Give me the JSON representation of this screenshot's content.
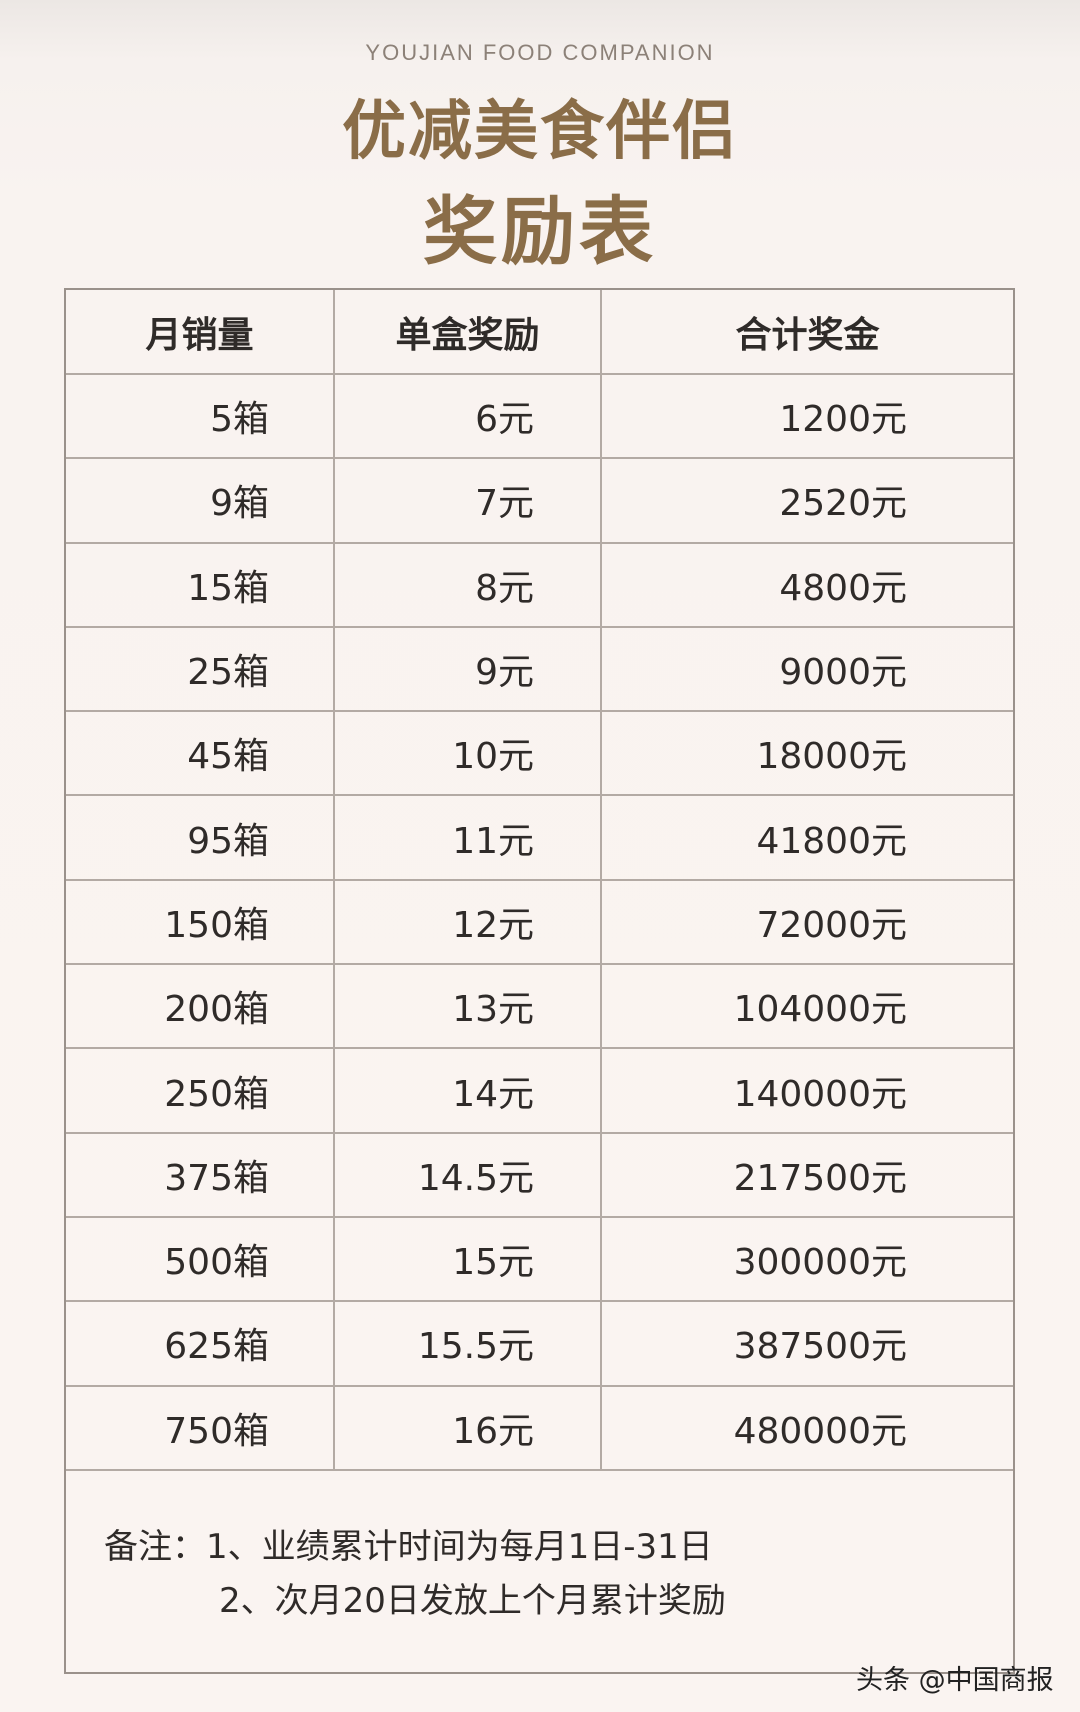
{
  "header": {
    "subtitle_en": "YOUJIAN FOOD COMPANION",
    "title_line1": "优减美食伴侣",
    "title_line2": "奖励表"
  },
  "table": {
    "columns": [
      "月销量",
      "单盒奖励",
      "合计奖金"
    ],
    "rows": [
      [
        "5箱",
        "6元",
        "1200元"
      ],
      [
        "9箱",
        "7元",
        "2520元"
      ],
      [
        "15箱",
        "8元",
        "4800元"
      ],
      [
        "25箱",
        "9元",
        "9000元"
      ],
      [
        "45箱",
        "10元",
        "18000元"
      ],
      [
        "95箱",
        "11元",
        "41800元"
      ],
      [
        "150箱",
        "12元",
        "72000元"
      ],
      [
        "200箱",
        "13元",
        "104000元"
      ],
      [
        "250箱",
        "14元",
        "140000元"
      ],
      [
        "375箱",
        "14.5元",
        "217500元"
      ],
      [
        "500箱",
        "15元",
        "300000元"
      ],
      [
        "625箱",
        "15.5元",
        "387500元"
      ],
      [
        "750箱",
        "16元",
        "480000元"
      ]
    ]
  },
  "notes": {
    "line1": "备注：1、业绩累计时间为每月1日-31日",
    "line2": "2、次月20日发放上个月累计奖励"
  },
  "watermark": "头条 @中国商报",
  "colors": {
    "title": "#8a6d48",
    "text": "#2f2b29",
    "border": "#9a918b",
    "background": "#faf4f1"
  }
}
